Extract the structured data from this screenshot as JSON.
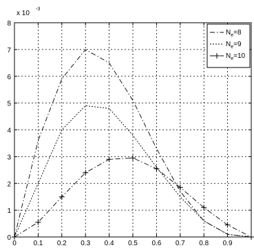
{
  "chart_data": {
    "type": "line",
    "title": "",
    "xlabel": "",
    "ylabel": "",
    "y_multiplier_label": "x 10",
    "y_multiplier_exponent": "-3",
    "xlim": [
      0,
      1
    ],
    "ylim": [
      0,
      8
    ],
    "x_ticks": [
      0,
      0.1,
      0.2,
      0.3,
      0.4,
      0.5,
      0.6,
      0.7,
      0.8,
      0.9
    ],
    "x_tick_labels": [
      "0",
      "0.1",
      "0.2",
      "0.3",
      "0.4",
      "0.5",
      "0.6",
      "0.7",
      "0.8",
      "0.9"
    ],
    "y_ticks": [
      0,
      1,
      2,
      3,
      4,
      5,
      6,
      7,
      8
    ],
    "y_tick_labels": [
      "0",
      "1",
      "2",
      "3",
      "4",
      "5",
      "6",
      "7",
      "8"
    ],
    "grid": true,
    "legend_position": "top-right",
    "series": [
      {
        "name_prefix": "N",
        "name_subscript": "e",
        "name_suffix": "=8",
        "line_style": "dash-dot",
        "marker": "none",
        "color": "#000000",
        "x": [
          0,
          0.1,
          0.2,
          0.3,
          0.4,
          0.5,
          0.6,
          0.7,
          0.8,
          0.9,
          1.0
        ],
        "y": [
          0,
          3.6,
          5.9,
          7.0,
          6.5,
          5.1,
          3.3,
          1.7,
          0.6,
          0.1,
          0.0
        ]
      },
      {
        "name_prefix": "N",
        "name_subscript": "e",
        "name_suffix": "=9",
        "line_style": "dotted",
        "marker": "none",
        "color": "#000000",
        "x": [
          0,
          0.1,
          0.2,
          0.3,
          0.4,
          0.5,
          0.6,
          0.7,
          0.8,
          0.9,
          1.0
        ],
        "y": [
          0,
          2.0,
          4.0,
          4.9,
          4.8,
          3.8,
          2.6,
          1.5,
          0.6,
          0.1,
          0.0
        ]
      },
      {
        "name_prefix": "N",
        "name_subscript": "e",
        "name_suffix": "=10",
        "line_style": "dash-dot",
        "marker": "plus",
        "color": "#000000",
        "x": [
          0,
          0.1,
          0.2,
          0.3,
          0.4,
          0.5,
          0.6,
          0.7,
          0.8,
          0.9,
          1.0
        ],
        "y": [
          0,
          0.55,
          1.5,
          2.4,
          2.9,
          2.95,
          2.55,
          1.85,
          1.1,
          0.45,
          0.0
        ]
      }
    ]
  }
}
